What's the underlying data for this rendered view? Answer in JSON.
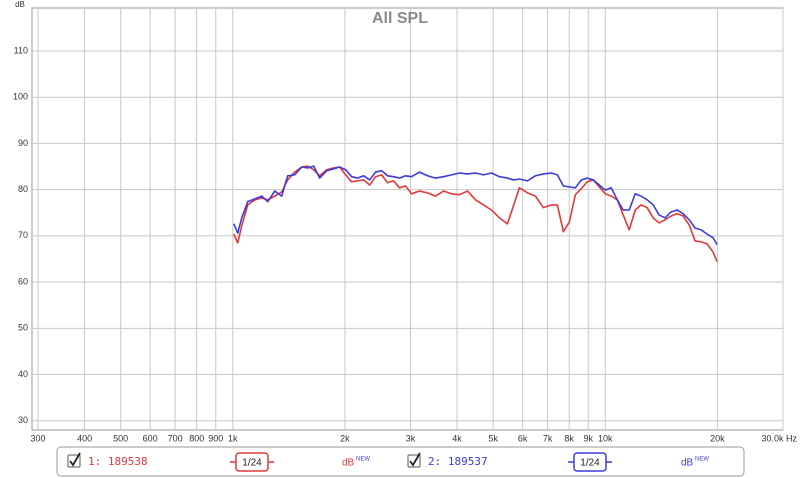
{
  "chart_data": {
    "type": "line",
    "title": "All SPL",
    "y_label": "dB",
    "x_scale": "log",
    "grid": true,
    "x": [
      1006,
      1031,
      1057,
      1097,
      1146,
      1196,
      1241,
      1296,
      1353,
      1404,
      1466,
      1531,
      1589,
      1649,
      1711,
      1787,
      1866,
      1936,
      2009,
      2085,
      2163,
      2245,
      2330,
      2417,
      2509,
      2603,
      2701,
      2803,
      2909,
      3019,
      3171,
      3333,
      3502,
      3680,
      3866,
      4062,
      4267,
      4483,
      4710,
      4948,
      5199,
      5462,
      5668,
      5882,
      6180,
      6494,
      6822,
      7168,
      7438,
      7718,
      8009,
      8311,
      8624,
      8949,
      9286,
      9636,
      10000,
      10378,
      10768,
      11174,
      11595,
      12032,
      12486,
      12956,
      13445,
      13951,
      14478,
      15023,
      15590,
      16178,
      16790,
      17422,
      18083,
      18761,
      19470,
      19967
    ],
    "series": [
      {
        "name": "1: 189538",
        "color": "#e2383c",
        "values": [
          70.4,
          68.5,
          72.2,
          76.7,
          77.8,
          78.2,
          77.8,
          78.6,
          79.5,
          82.1,
          83.8,
          84.9,
          85.1,
          84.3,
          83.0,
          84.3,
          84.7,
          84.9,
          83.2,
          81.7,
          81.9,
          82.1,
          81.0,
          82.8,
          83.2,
          81.5,
          81.9,
          80.4,
          80.8,
          79.1,
          79.7,
          79.3,
          78.6,
          79.7,
          79.1,
          78.9,
          79.7,
          77.8,
          76.7,
          75.6,
          73.9,
          72.6,
          76.5,
          80.4,
          79.3,
          78.6,
          76.1,
          76.7,
          76.7,
          70.9,
          73.0,
          78.9,
          80.2,
          81.7,
          82.1,
          80.6,
          79.1,
          78.6,
          77.8,
          74.5,
          71.3,
          75.6,
          76.7,
          76.1,
          73.9,
          72.8,
          73.5,
          74.3,
          74.8,
          74.3,
          72.4,
          68.9,
          68.7,
          68.3,
          66.5,
          64.4
        ]
      },
      {
        "name": "2: 189537",
        "color": "#3c3cdc",
        "values": [
          72.6,
          70.6,
          73.9,
          77.4,
          78.0,
          78.6,
          77.4,
          79.7,
          78.6,
          83.0,
          83.2,
          84.9,
          84.7,
          85.1,
          82.5,
          84.1,
          84.5,
          84.9,
          84.3,
          82.8,
          82.5,
          83.0,
          82.1,
          83.8,
          84.1,
          83.0,
          82.8,
          82.5,
          83.0,
          82.8,
          83.8,
          83.0,
          82.5,
          82.8,
          83.2,
          83.6,
          83.4,
          83.6,
          83.2,
          83.6,
          82.8,
          82.5,
          82.1,
          82.3,
          81.9,
          83.0,
          83.4,
          83.6,
          83.2,
          80.8,
          80.6,
          80.4,
          82.1,
          82.5,
          82.1,
          81.0,
          79.9,
          80.4,
          77.8,
          75.6,
          75.6,
          79.1,
          78.6,
          77.8,
          76.7,
          74.5,
          73.9,
          75.2,
          75.6,
          74.8,
          73.5,
          71.7,
          71.3,
          70.4,
          69.6,
          68.1
        ]
      }
    ],
    "xlim": [
      289,
      30000
    ],
    "ylim": [
      28,
      119.3
    ],
    "xticks": [
      300,
      400,
      500,
      600,
      700,
      800,
      900,
      {
        "value": 1000,
        "label": "1k"
      },
      {
        "value": 2000,
        "label": "2k"
      },
      {
        "value": 3000,
        "label": "3k"
      },
      {
        "value": 4000,
        "label": "4k"
      },
      {
        "value": 5000,
        "label": "5k"
      },
      {
        "value": 6000,
        "label": "6k"
      },
      {
        "value": 7000,
        "label": "7k"
      },
      {
        "value": 8000,
        "label": "8k"
      },
      {
        "value": 9000,
        "label": "9k"
      },
      {
        "value": 10000,
        "label": "10k"
      },
      {
        "value": 20000,
        "label": "20k"
      },
      {
        "value": 30000,
        "label": "30.0k Hz"
      }
    ],
    "yticks": [
      30,
      40,
      50,
      60,
      70,
      80,
      90,
      100,
      110
    ]
  },
  "legend_controls": [
    {
      "smoothing": "1/24",
      "unit": "dB",
      "unit_badge": "NEW"
    },
    {
      "smoothing": "1/24",
      "unit": "dB",
      "unit_badge": "NEW"
    }
  ]
}
